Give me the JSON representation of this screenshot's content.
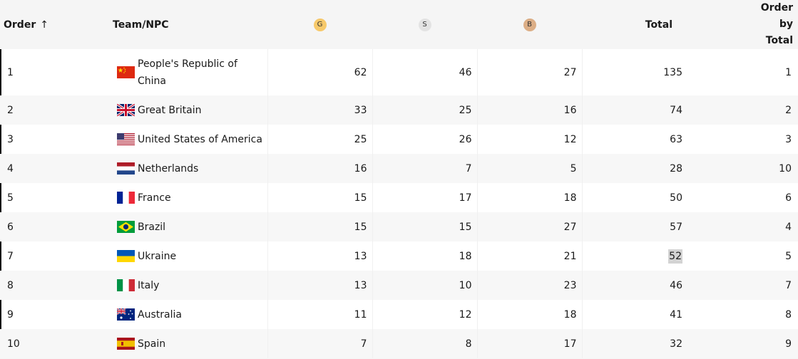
{
  "table": {
    "headers": {
      "order": "Order",
      "order_arrow": "↑",
      "team": "Team/NPC",
      "gold": "G",
      "silver": "S",
      "bronze": "B",
      "total": "Total",
      "order_by_total_1": "Order",
      "order_by_total_2": "by",
      "order_by_total_3": "Total"
    },
    "medal_colors": {
      "gold": "#f7c96a",
      "silver": "#e3e3e3",
      "bronze": "#dcae86"
    },
    "rows": [
      {
        "order": "1",
        "team": "People's Republic of China",
        "flag": "china-flag-icon",
        "gold": "62",
        "silver": "46",
        "bronze": "27",
        "total": "135",
        "order_by_total": "1"
      },
      {
        "order": "2",
        "team": "Great Britain",
        "flag": "great-britain-flag-icon",
        "gold": "33",
        "silver": "25",
        "bronze": "16",
        "total": "74",
        "order_by_total": "2"
      },
      {
        "order": "3",
        "team": "United States of America",
        "flag": "usa-flag-icon",
        "gold": "25",
        "silver": "26",
        "bronze": "12",
        "total": "63",
        "order_by_total": "3"
      },
      {
        "order": "4",
        "team": "Netherlands",
        "flag": "netherlands-flag-icon",
        "gold": "16",
        "silver": "7",
        "bronze": "5",
        "total": "28",
        "order_by_total": "10"
      },
      {
        "order": "5",
        "team": "France",
        "flag": "france-flag-icon",
        "gold": "15",
        "silver": "17",
        "bronze": "18",
        "total": "50",
        "order_by_total": "6"
      },
      {
        "order": "6",
        "team": "Brazil",
        "flag": "brazil-flag-icon",
        "gold": "15",
        "silver": "15",
        "bronze": "27",
        "total": "57",
        "order_by_total": "4"
      },
      {
        "order": "7",
        "team": "Ukraine",
        "flag": "ukraine-flag-icon",
        "gold": "13",
        "silver": "18",
        "bronze": "21",
        "total": "52",
        "order_by_total": "5"
      },
      {
        "order": "8",
        "team": "Italy",
        "flag": "italy-flag-icon",
        "gold": "13",
        "silver": "10",
        "bronze": "23",
        "total": "46",
        "order_by_total": "7"
      },
      {
        "order": "9",
        "team": "Australia",
        "flag": "australia-flag-icon",
        "gold": "11",
        "silver": "12",
        "bronze": "18",
        "total": "41",
        "order_by_total": "8"
      },
      {
        "order": "10",
        "team": "Spain",
        "flag": "spain-flag-icon",
        "gold": "7",
        "silver": "8",
        "bronze": "17",
        "total": "32",
        "order_by_total": "9"
      }
    ]
  }
}
